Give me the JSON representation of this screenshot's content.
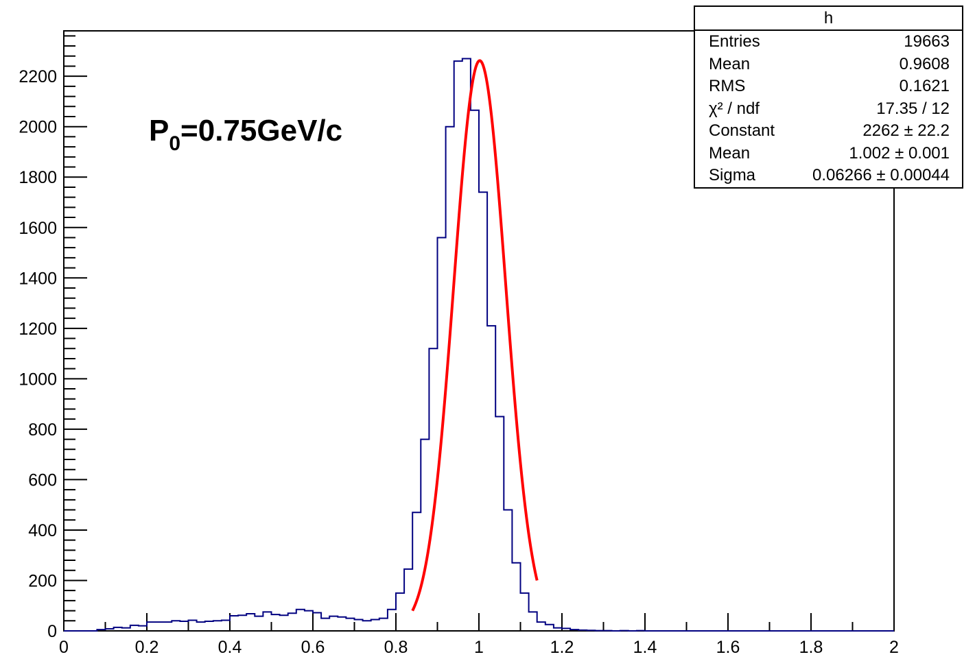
{
  "chart_data": {
    "type": "histogram",
    "xlim": [
      0,
      2
    ],
    "ylim": [
      0,
      2380
    ],
    "x_tick_labels": [
      "0",
      "0.2",
      "0.4",
      "0.6",
      "0.8",
      "1",
      "1.2",
      "1.4",
      "1.6",
      "1.8",
      "2"
    ],
    "y_tick_labels": [
      "0",
      "200",
      "400",
      "600",
      "800",
      "1000",
      "1200",
      "1400",
      "1600",
      "1800",
      "2000",
      "2200"
    ],
    "bin_width": 0.02,
    "bin_start": 0.0,
    "counts": [
      0,
      0,
      0,
      0,
      5,
      8,
      14,
      12,
      22,
      20,
      35,
      35,
      35,
      40,
      38,
      42,
      35,
      38,
      40,
      42,
      60,
      62,
      68,
      58,
      75,
      65,
      62,
      70,
      85,
      80,
      72,
      50,
      58,
      55,
      50,
      45,
      40,
      45,
      50,
      85,
      150,
      245,
      470,
      760,
      1120,
      1560,
      2000,
      2260,
      2270,
      2065,
      1740,
      1210,
      850,
      480,
      270,
      150,
      75,
      35,
      25,
      12,
      10,
      5,
      3,
      2,
      1,
      1,
      0,
      1,
      0,
      1,
      0,
      0,
      0,
      0,
      0,
      0,
      0,
      0,
      0,
      0,
      0,
      0,
      0,
      0,
      0,
      0,
      0,
      0,
      0,
      0,
      0,
      0,
      0,
      0,
      0,
      0,
      0,
      0,
      0,
      0
    ],
    "fit": {
      "function": "gaus",
      "constant": 2262,
      "mean": 1.002,
      "sigma": 0.06266,
      "range": [
        0.84,
        1.14
      ]
    },
    "annotation": {
      "main": "P",
      "sub": "0",
      "rest": "=0.75GeV/c"
    },
    "colors": {
      "histogram": "#000080",
      "fit": "#ff0000",
      "axis": "#000000"
    }
  },
  "stats_box": {
    "title": "h",
    "rows": [
      {
        "label": "Entries",
        "value": "19663"
      },
      {
        "label": "Mean",
        "value": "0.9608"
      },
      {
        "label": "RMS",
        "value": "0.1621"
      },
      {
        "label": "χ² / ndf",
        "value": "17.35 / 12"
      },
      {
        "label": "Constant",
        "value": "2262 ± 22.2"
      },
      {
        "label": "Mean",
        "value": "1.002 ± 0.001"
      },
      {
        "label": "Sigma",
        "value": "0.06266 ± 0.00044"
      }
    ]
  }
}
